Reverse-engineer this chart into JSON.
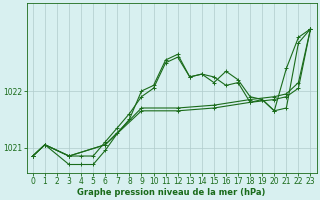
{
  "xlabel": "Graphe pression niveau de la mer (hPa)",
  "bg_color": "#d8f0f0",
  "grid_color": "#b0cccc",
  "line_color": "#1a6b1a",
  "xlim": [
    -0.5,
    23.5
  ],
  "ylim": [
    1020.55,
    1023.55
  ],
  "yticks": [
    1021,
    1022
  ],
  "xticks": [
    0,
    1,
    2,
    3,
    4,
    5,
    6,
    7,
    8,
    9,
    10,
    11,
    12,
    13,
    14,
    15,
    16,
    17,
    18,
    19,
    20,
    21,
    22,
    23
  ],
  "series": [
    {
      "x": [
        0,
        1,
        3,
        4,
        5,
        6,
        7,
        8,
        9,
        10,
        11,
        12,
        13,
        14,
        15,
        16,
        17,
        18,
        19,
        20,
        21,
        22,
        23
      ],
      "y": [
        1020.85,
        1021.05,
        1020.85,
        1020.85,
        1020.85,
        1021.1,
        1021.35,
        1021.6,
        1021.9,
        1022.05,
        1022.5,
        1022.6,
        1022.25,
        1022.3,
        1022.25,
        1022.1,
        1022.15,
        1021.8,
        1021.85,
        1021.65,
        1022.4,
        1022.95,
        1023.1
      ]
    },
    {
      "x": [
        0,
        1,
        3,
        4,
        5,
        6,
        7,
        8,
        9,
        10,
        11,
        12,
        13,
        14,
        15,
        16,
        17,
        18,
        19,
        20,
        21,
        22,
        23
      ],
      "y": [
        1020.85,
        1021.05,
        1020.7,
        1020.7,
        1020.7,
        1020.95,
        1021.25,
        1021.5,
        1022.0,
        1022.1,
        1022.55,
        1022.65,
        1022.25,
        1022.3,
        1022.15,
        1022.35,
        1022.2,
        1021.9,
        1021.85,
        1021.65,
        1021.7,
        1022.85,
        1023.1
      ]
    },
    {
      "x": [
        0,
        1,
        3,
        6,
        9,
        12,
        15,
        18,
        20,
        21,
        22,
        23
      ],
      "y": [
        1020.85,
        1021.05,
        1020.85,
        1021.05,
        1021.65,
        1021.65,
        1021.7,
        1021.8,
        1021.85,
        1021.9,
        1022.05,
        1023.1
      ]
    },
    {
      "x": [
        0,
        1,
        3,
        6,
        9,
        12,
        15,
        18,
        20,
        21,
        22,
        23
      ],
      "y": [
        1020.85,
        1021.05,
        1020.85,
        1021.05,
        1021.7,
        1021.7,
        1021.75,
        1021.85,
        1021.9,
        1021.95,
        1022.15,
        1023.1
      ]
    }
  ]
}
